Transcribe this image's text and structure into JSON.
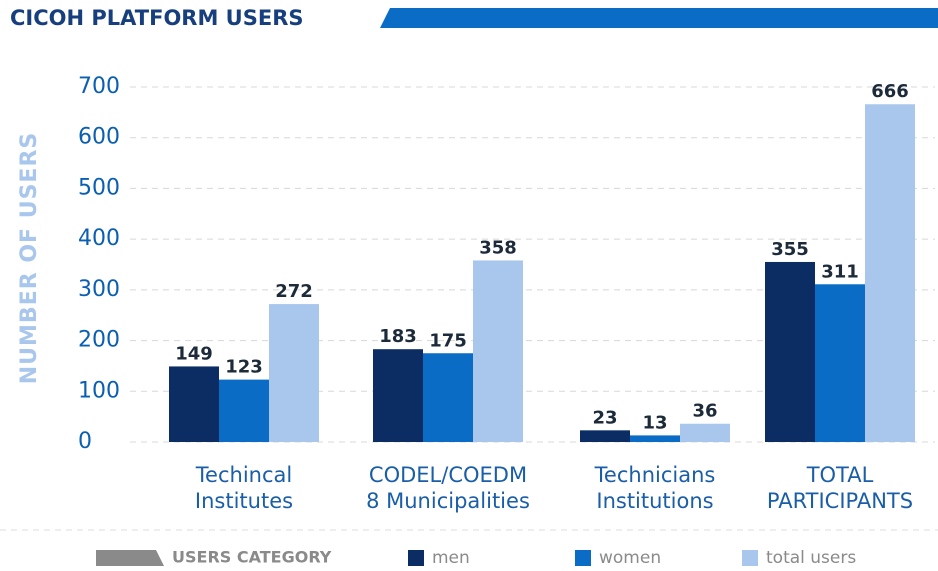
{
  "chart_data": {
    "type": "bar",
    "title": "CICOH PLATFORM USERS",
    "y_label": "NUMBER OF USERS",
    "categories": [
      "Techincal\nInstitutes",
      "CODEL/COEDM\n8 Municipalities",
      "Technicians\nInstitutions",
      "TOTAL\nPARTICIPANTS"
    ],
    "series": [
      {
        "name": "men",
        "color": "#0b2d64",
        "values": [
          149,
          183,
          23,
          355
        ]
      },
      {
        "name": "women",
        "color": "#0a6cc5",
        "values": [
          123,
          175,
          13,
          311
        ]
      },
      {
        "name": "total users",
        "color": "#a9c7ec",
        "values": [
          272,
          358,
          36,
          666
        ]
      }
    ],
    "legend_title": "USERS CATEGORY",
    "ylim": [
      0,
      700
    ],
    "yticks": [
      0,
      100,
      200,
      300,
      400,
      500,
      600,
      700
    ],
    "grid": true
  }
}
